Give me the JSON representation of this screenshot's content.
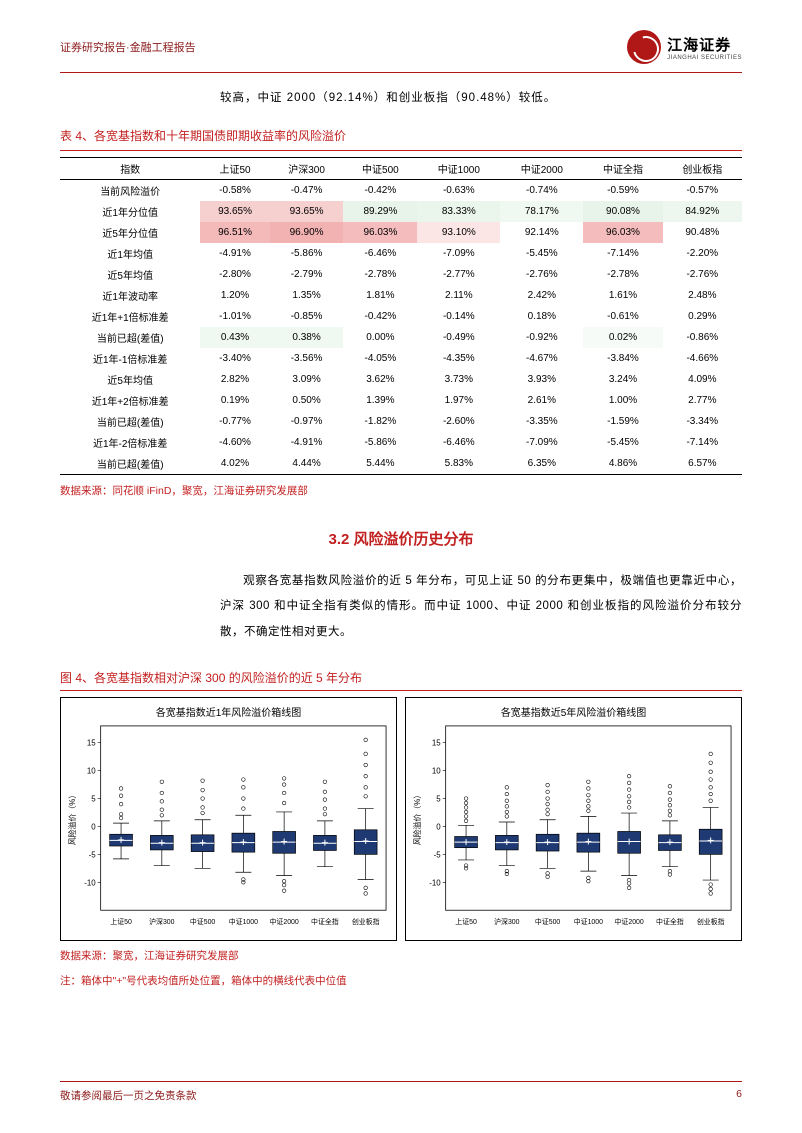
{
  "header": {
    "left": "证券研究报告·金融工程报告",
    "logo_cn": "江海证券",
    "logo_en": "JIANGHAI SECURITIES"
  },
  "intro_line": "较高，中证 2000（92.14%）和创业板指（90.48%）较低。",
  "table": {
    "caption": "表 4、各宽基指数和十年期国债即期收益率的风险溢价",
    "columns": [
      "指数",
      "上证50",
      "沪深300",
      "中证500",
      "中证1000",
      "中证2000",
      "中证全指",
      "创业板指"
    ],
    "rows": [
      {
        "label": "当前风险溢价",
        "vals": [
          "-0.58%",
          "-0.47%",
          "-0.42%",
          "-0.63%",
          "-0.74%",
          "-0.59%",
          "-0.57%"
        ],
        "bg": [
          "",
          "",
          "",
          "",
          "",
          "",
          ""
        ]
      },
      {
        "label": "近1年分位值",
        "vals": [
          "93.65%",
          "93.65%",
          "89.29%",
          "83.33%",
          "78.17%",
          "90.08%",
          "84.92%"
        ],
        "bg": [
          "#f6cfcf",
          "#f6cfcf",
          "#e8f3ea",
          "#eaf5ec",
          "#f0f8f2",
          "#e8f3ea",
          "#eef6f0"
        ]
      },
      {
        "label": "近5年分位值",
        "vals": [
          "96.51%",
          "96.90%",
          "96.03%",
          "93.10%",
          "92.14%",
          "96.03%",
          "90.48%"
        ],
        "bg": [
          "#f4b9b9",
          "#f3b2b2",
          "#f4bcbc",
          "#fbe5e5",
          "#fff",
          "#f4bcbc",
          "#fff"
        ]
      },
      {
        "label": "近1年均值",
        "vals": [
          "-4.91%",
          "-5.86%",
          "-6.46%",
          "-7.09%",
          "-5.45%",
          "-7.14%",
          "-2.20%"
        ],
        "bg": [
          "",
          "",
          "",
          "",
          "",
          "",
          ""
        ]
      },
      {
        "label": "近5年均值",
        "vals": [
          "-2.80%",
          "-2.79%",
          "-2.78%",
          "-2.77%",
          "-2.76%",
          "-2.78%",
          "-2.76%"
        ],
        "bg": [
          "",
          "",
          "",
          "",
          "",
          "",
          ""
        ]
      },
      {
        "label": "近1年波动率",
        "vals": [
          "1.20%",
          "1.35%",
          "1.81%",
          "2.11%",
          "2.42%",
          "1.61%",
          "2.48%"
        ],
        "bg": [
          "",
          "",
          "",
          "",
          "",
          "",
          ""
        ]
      },
      {
        "label": "近1年+1倍标准差",
        "vals": [
          "-1.01%",
          "-0.85%",
          "-0.42%",
          "-0.14%",
          "0.18%",
          "-0.61%",
          "0.29%"
        ],
        "bg": [
          "",
          "",
          "",
          "",
          "",
          "",
          ""
        ]
      },
      {
        "label": "当前已超(差值)",
        "vals": [
          "0.43%",
          "0.38%",
          "0.00%",
          "-0.49%",
          "-0.92%",
          "0.02%",
          "-0.86%"
        ],
        "bg": [
          "#f0f8f2",
          "#f0f8f2",
          "#fff",
          "#fff",
          "#fff",
          "#f6fbf7",
          "#fff"
        ]
      },
      {
        "label": "近1年-1倍标准差",
        "vals": [
          "-3.40%",
          "-3.56%",
          "-4.05%",
          "-4.35%",
          "-4.67%",
          "-3.84%",
          "-4.66%"
        ],
        "bg": [
          "",
          "",
          "",
          "",
          "",
          "",
          ""
        ]
      },
      {
        "label": "近5年均值",
        "vals": [
          "2.82%",
          "3.09%",
          "3.62%",
          "3.73%",
          "3.93%",
          "3.24%",
          "4.09%"
        ],
        "bg": [
          "",
          "",
          "",
          "",
          "",
          "",
          ""
        ]
      },
      {
        "label": "近1年+2倍标准差",
        "vals": [
          "0.19%",
          "0.50%",
          "1.39%",
          "1.97%",
          "2.61%",
          "1.00%",
          "2.77%"
        ],
        "bg": [
          "",
          "",
          "",
          "",
          "",
          "",
          ""
        ]
      },
      {
        "label": "当前已超(差值)",
        "vals": [
          "-0.77%",
          "-0.97%",
          "-1.82%",
          "-2.60%",
          "-3.35%",
          "-1.59%",
          "-3.34%"
        ],
        "bg": [
          "",
          "",
          "",
          "",
          "",
          "",
          ""
        ]
      },
      {
        "label": "近1年-2倍标准差",
        "vals": [
          "-4.60%",
          "-4.91%",
          "-5.86%",
          "-6.46%",
          "-7.09%",
          "-5.45%",
          "-7.14%"
        ],
        "bg": [
          "",
          "",
          "",
          "",
          "",
          "",
          ""
        ]
      },
      {
        "label": "当前已超(差值)",
        "vals": [
          "4.02%",
          "4.44%",
          "5.44%",
          "5.83%",
          "6.35%",
          "4.86%",
          "6.57%"
        ],
        "bg": [
          "",
          "",
          "",
          "",
          "",
          "",
          ""
        ]
      }
    ],
    "source": "数据来源：同花顺 iFinD，聚宽，江海证券研究发展部"
  },
  "section_3_2": {
    "heading": "3.2 风险溢价历史分布",
    "para": "观察各宽基指数风险溢价的近 5 年分布，可见上证 50 的分布更集中，极端值也更靠近中心，沪深 300 和中证全指有类似的情形。而中证 1000、中证 2000 和创业板指的风险溢价分布较分散，不确定性相对更大。"
  },
  "figure": {
    "caption": "图 4、各宽基指数相对沪深 300 的风险溢价的近 5 年分布",
    "left_title": "各宽基指数近1年风险溢价箱线图",
    "right_title": "各宽基指数近5年风险溢价箱线图",
    "ylabel": "风险溢价（%）",
    "categories": [
      "上证50",
      "沪深300",
      "中证500",
      "中证1000",
      "中证2000",
      "中证全指",
      "创业板指"
    ],
    "left_chart": {
      "ylim": [
        -15,
        18
      ],
      "yticks": [
        -10,
        -5,
        0,
        5,
        10,
        15
      ],
      "box_color": "#1f3a73",
      "boxes": [
        {
          "q1": -3.5,
          "med": -2.5,
          "q3": -1.4,
          "mean": -2.4,
          "wlo": -5.8,
          "whi": 0.6,
          "out": [
            1.5,
            2.2,
            4.0,
            5.5,
            6.8
          ]
        },
        {
          "q1": -4.2,
          "med": -3.0,
          "q3": -1.6,
          "mean": -2.9,
          "wlo": -7.0,
          "whi": 1.0,
          "out": [
            2.0,
            3.0,
            4.5,
            6.0,
            8.0
          ]
        },
        {
          "q1": -4.5,
          "med": -3.0,
          "q3": -1.5,
          "mean": -2.9,
          "wlo": -7.5,
          "whi": 1.2,
          "out": [
            2.4,
            3.4,
            5.0,
            6.5,
            8.2
          ]
        },
        {
          "q1": -4.6,
          "med": -2.9,
          "q3": -1.2,
          "mean": -2.8,
          "wlo": -8.2,
          "whi": 2.0,
          "out": [
            -10,
            -9.5,
            3.2,
            5.0,
            7.0,
            8.4
          ]
        },
        {
          "q1": -4.8,
          "med": -2.8,
          "q3": -0.9,
          "mean": -2.7,
          "wlo": -8.8,
          "whi": 2.6,
          "out": [
            -11.5,
            -10.5,
            -9.8,
            4.2,
            6.0,
            7.5,
            8.6
          ]
        },
        {
          "q1": -4.3,
          "med": -3.0,
          "q3": -1.6,
          "mean": -2.9,
          "wlo": -7.2,
          "whi": 1.0,
          "out": [
            2.2,
            3.2,
            4.8,
            6.2,
            8.0
          ]
        },
        {
          "q1": -5.0,
          "med": -2.7,
          "q3": -0.6,
          "mean": -2.6,
          "wlo": -9.5,
          "whi": 3.2,
          "out": [
            -12,
            -11,
            5.4,
            7.0,
            9.0,
            11.0,
            13.0,
            15.5
          ]
        }
      ]
    },
    "right_chart": {
      "ylim": [
        -15,
        18
      ],
      "yticks": [
        -10,
        -5,
        0,
        5,
        10,
        15
      ],
      "box_color": "#1f3a73",
      "boxes": [
        {
          "q1": -3.8,
          "med": -2.8,
          "q3": -1.8,
          "mean": -2.8,
          "wlo": -6.0,
          "whi": 0.2,
          "out": [
            -7.5,
            -7.0,
            1.0,
            1.8,
            2.6,
            3.4,
            4.2,
            5.0
          ]
        },
        {
          "q1": -4.2,
          "med": -2.9,
          "q3": -1.6,
          "mean": -2.8,
          "wlo": -7.0,
          "whi": 0.8,
          "out": [
            -8.5,
            -8.0,
            1.8,
            2.6,
            3.6,
            4.6,
            5.8,
            7.0
          ]
        },
        {
          "q1": -4.4,
          "med": -2.9,
          "q3": -1.4,
          "mean": -2.8,
          "wlo": -7.5,
          "whi": 1.2,
          "out": [
            -9.0,
            -8.4,
            2.2,
            3.0,
            4.0,
            5.0,
            6.2,
            7.4
          ]
        },
        {
          "q1": -4.6,
          "med": -2.8,
          "q3": -1.2,
          "mean": -2.7,
          "wlo": -8.0,
          "whi": 1.8,
          "out": [
            -9.8,
            -9.2,
            2.8,
            3.6,
            4.6,
            5.6,
            6.8,
            8.0
          ]
        },
        {
          "q1": -4.8,
          "med": -2.7,
          "q3": -0.9,
          "mean": -2.7,
          "wlo": -8.8,
          "whi": 2.4,
          "out": [
            -11,
            -10.2,
            -9.6,
            3.4,
            4.4,
            5.4,
            6.6,
            7.8,
            9.0
          ]
        },
        {
          "q1": -4.3,
          "med": -2.9,
          "q3": -1.5,
          "mean": -2.8,
          "wlo": -7.2,
          "whi": 1.0,
          "out": [
            -8.6,
            -8.0,
            2.0,
            2.8,
            3.8,
            4.8,
            6.0,
            7.2
          ]
        },
        {
          "q1": -5.0,
          "med": -2.6,
          "q3": -0.5,
          "mean": -2.5,
          "wlo": -9.6,
          "whi": 3.4,
          "out": [
            -12,
            -11.2,
            -10.4,
            4.6,
            5.8,
            7.0,
            8.4,
            9.8,
            11.4,
            13.0
          ]
        }
      ]
    },
    "source": "数据来源：聚宽，江海证券研究发展部",
    "note": "注：箱体中\"+\"号代表均值所处位置，箱体中的横线代表中位值"
  },
  "footer": {
    "left": "敬请参阅最后一页之免责条款",
    "page": "6"
  }
}
